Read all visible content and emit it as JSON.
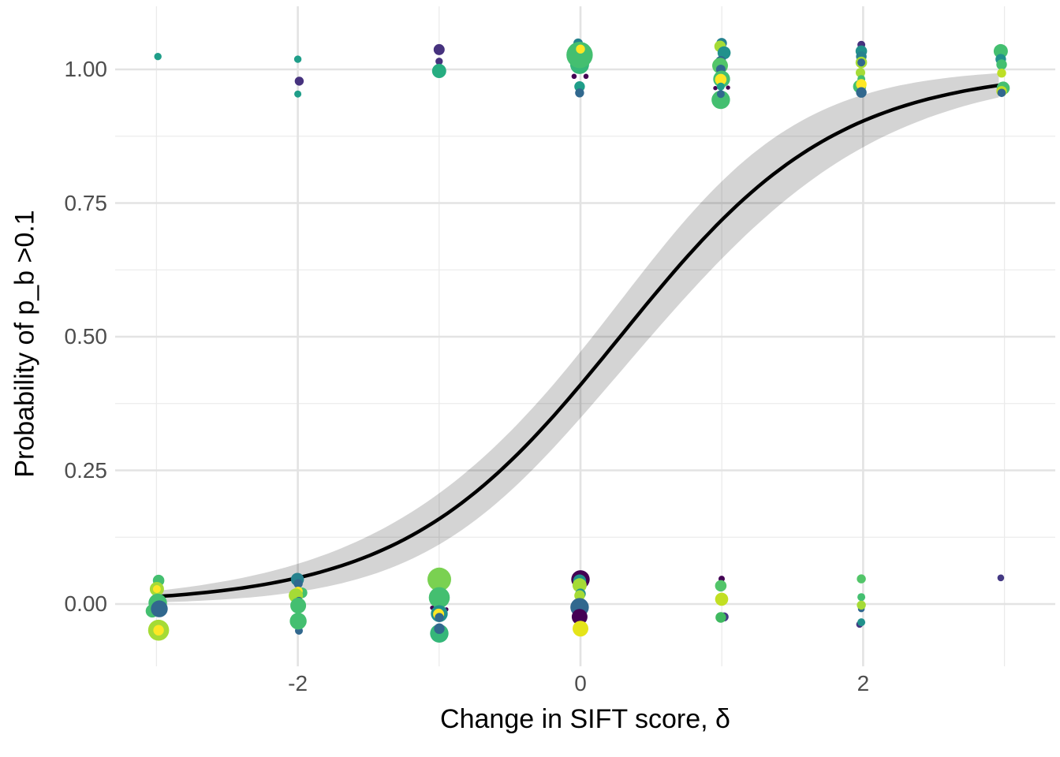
{
  "chart_data": {
    "type": "scatter",
    "title": "",
    "xlabel": "Change in SIFT score, δ",
    "ylabel": "Probability of p_b >0.1",
    "x_axis": {
      "tick_values": [
        -2,
        0,
        2
      ],
      "tick_labels": [
        "-2",
        "0",
        "2"
      ],
      "minor_gridlines": [
        -3,
        -1,
        1,
        3
      ],
      "lim": [
        -3.29,
        3.36
      ]
    },
    "y_axis": {
      "tick_values": [
        0,
        0.25,
        0.5,
        0.75,
        1.0
      ],
      "tick_labels": [
        "0.00",
        "0.25",
        "0.50",
        "0.75",
        "1.00"
      ],
      "minor_gridlines": [
        0.125,
        0.375,
        0.625,
        0.875
      ],
      "lim": [
        -0.117,
        1.118
      ]
    },
    "grid": {
      "on": true,
      "major_color": "#e3e3e3",
      "minor_color": "#ebebeb"
    },
    "legend": {
      "position": "none"
    },
    "fit_curve": {
      "model": "logistic",
      "intercept": -0.364,
      "slope": 1.3,
      "x_range": [
        -2.99,
        2.99
      ],
      "color": "#000000",
      "width": 4.5,
      "band_color": "rgba(0,0,0,0.17)",
      "band_se_intercept": 0.256,
      "band_se_slope": 0.25,
      "value_at_0": 0.41,
      "value_at_minus3": 0.013,
      "value_at_plus3": 0.97
    },
    "point_palette_name": "viridis",
    "points": [
      [
        -2.99,
        1.024,
        4.7,
        "#1f9e89"
      ],
      [
        -2.0,
        1.019,
        4.7,
        "#1f9e89"
      ],
      [
        -1.99,
        0.978,
        5.7,
        "#46327e"
      ],
      [
        -2.0,
        0.954,
        4.5,
        "#1f9e89"
      ],
      [
        -1.0,
        1.037,
        7.0,
        "#46327e"
      ],
      [
        -1.0,
        1.015,
        4.7,
        "#46327e"
      ],
      [
        -1.0,
        0.997,
        9.0,
        "#27ad81"
      ],
      [
        -0.017,
        1.049,
        6.0,
        "#26828e"
      ],
      [
        -0.006,
        1.009,
        12.0,
        "#35b779"
      ],
      [
        -0.006,
        1.027,
        16.7,
        "#44bf70"
      ],
      [
        0.0,
        1.038,
        5.7,
        "#fde725"
      ],
      [
        -0.045,
        0.987,
        3.3,
        "#440154"
      ],
      [
        0.039,
        0.987,
        3.3,
        "#440154"
      ],
      [
        -0.006,
        0.968,
        6.7,
        "#1f9e89"
      ],
      [
        -0.006,
        0.956,
        5.7,
        "#31688e"
      ],
      [
        0.999,
        1.049,
        6.7,
        "#26828e"
      ],
      [
        0.988,
        1.043,
        7.3,
        "#a5db36"
      ],
      [
        1.016,
        1.031,
        8.3,
        "#21918c"
      ],
      [
        0.993,
        1.015,
        6.7,
        "#31688e"
      ],
      [
        0.988,
        1.007,
        10.0,
        "#52c569"
      ],
      [
        0.993,
        1.0,
        6.0,
        "#31688e"
      ],
      [
        0.999,
        0.982,
        10.7,
        "#44bf70"
      ],
      [
        0.993,
        0.981,
        7.3,
        "#fde725"
      ],
      [
        0.993,
        0.943,
        11.7,
        "#44bf70"
      ],
      [
        0.954,
        0.965,
        2.7,
        "#440154"
      ],
      [
        1.044,
        0.966,
        2.7,
        "#440154"
      ],
      [
        0.993,
        0.968,
        5.0,
        "#1f9e89"
      ],
      [
        0.993,
        0.954,
        5.0,
        "#31688e"
      ],
      [
        1.987,
        1.046,
        5.0,
        "#46327e"
      ],
      [
        1.987,
        1.034,
        7.3,
        "#21918c"
      ],
      [
        1.987,
        1.024,
        6.7,
        "#26828e"
      ],
      [
        1.987,
        1.013,
        7.3,
        "#a5db36"
      ],
      [
        1.987,
        1.013,
        5.0,
        "#31688e"
      ],
      [
        1.981,
        0.994,
        6.0,
        "#a5db36"
      ],
      [
        1.975,
        0.968,
        8.3,
        "#44bf70"
      ],
      [
        1.987,
        0.982,
        5.0,
        "#44bf70"
      ],
      [
        1.987,
        0.972,
        6.7,
        "#fde725"
      ],
      [
        1.987,
        0.957,
        6.7,
        "#31688e"
      ],
      [
        2.974,
        1.034,
        9.0,
        "#44bf70"
      ],
      [
        2.974,
        1.019,
        6.7,
        "#21918c"
      ],
      [
        2.98,
        1.009,
        6.7,
        "#44bf70"
      ],
      [
        2.98,
        0.993,
        5.7,
        "#bddf26"
      ],
      [
        2.991,
        0.965,
        8.3,
        "#44bf70"
      ],
      [
        2.98,
        0.959,
        6.7,
        "#bddf26"
      ],
      [
        2.98,
        0.956,
        5.3,
        "#31688e"
      ],
      [
        -2.985,
        0.044,
        7.3,
        "#44bf70"
      ],
      [
        -2.997,
        0.028,
        9.0,
        "#a5db36"
      ],
      [
        -2.997,
        0.028,
        5.0,
        "#fde725"
      ],
      [
        -2.991,
        0.002,
        11.7,
        "#44bf70"
      ],
      [
        -3.03,
        -0.013,
        8.3,
        "#44bf70"
      ],
      [
        -2.98,
        -0.009,
        10.7,
        "#31688e"
      ],
      [
        -2.985,
        -0.049,
        13.3,
        "#a5db36"
      ],
      [
        -2.985,
        -0.049,
        6.7,
        "#fde725"
      ],
      [
        -2.003,
        0.046,
        8.3,
        "#26828e"
      ],
      [
        -1.997,
        0.038,
        5.7,
        "#31688e"
      ],
      [
        -1.97,
        0.021,
        6.7,
        "#44bf70"
      ],
      [
        -1.997,
        0.024,
        5.7,
        "#fde725"
      ],
      [
        -2.014,
        0.016,
        9.0,
        "#a5db36"
      ],
      [
        -1.992,
        0.006,
        5.0,
        "#31688e"
      ],
      [
        -1.997,
        -0.003,
        10.0,
        "#44bf70"
      ],
      [
        -1.992,
        -0.05,
        5.0,
        "#31688e"
      ],
      [
        -1.997,
        -0.032,
        10.7,
        "#44bf70"
      ],
      [
        -0.999,
        0.046,
        15.0,
        "#7ad151"
      ],
      [
        -1.004,
        0.006,
        7.3,
        "#fde725"
      ],
      [
        -0.999,
        0.012,
        13.3,
        "#44bf70"
      ],
      [
        -1.049,
        -0.007,
        2.7,
        "#440154"
      ],
      [
        -0.949,
        -0.01,
        2.7,
        "#440154"
      ],
      [
        -0.999,
        -0.018,
        10.7,
        "#21918c"
      ],
      [
        -1.004,
        -0.019,
        7.0,
        "#fde725"
      ],
      [
        -0.999,
        -0.025,
        5.7,
        "#31688e"
      ],
      [
        -0.999,
        -0.055,
        11.7,
        "#35b779"
      ],
      [
        -0.999,
        -0.046,
        6.7,
        "#31688e"
      ],
      [
        0.0,
        0.046,
        11.7,
        "#440154"
      ],
      [
        -0.006,
        0.043,
        8.3,
        "#21918c"
      ],
      [
        -0.006,
        0.035,
        9.0,
        "#a5db36"
      ],
      [
        0.0,
        0.019,
        6.7,
        "#21918c"
      ],
      [
        -0.006,
        0.016,
        6.7,
        "#a5db36"
      ],
      [
        -0.006,
        -0.006,
        11.7,
        "#31688e"
      ],
      [
        -0.006,
        -0.021,
        6.0,
        "#1f9e89"
      ],
      [
        -0.006,
        -0.024,
        10.0,
        "#440154"
      ],
      [
        0.0,
        -0.046,
        10.0,
        "#e5e419"
      ],
      [
        0.999,
        0.047,
        4.0,
        "#440154"
      ],
      [
        0.993,
        0.034,
        7.3,
        "#52c569"
      ],
      [
        0.999,
        0.009,
        8.3,
        "#c2df23"
      ],
      [
        1.016,
        -0.024,
        5.7,
        "#443983"
      ],
      [
        0.993,
        -0.025,
        6.7,
        "#3fb960"
      ],
      [
        1.987,
        0.047,
        5.7,
        "#52c569"
      ],
      [
        1.987,
        0.013,
        5.0,
        "#44bf70"
      ],
      [
        1.987,
        -0.009,
        4.3,
        "#31688e"
      ],
      [
        1.987,
        -0.002,
        5.7,
        "#a5db36"
      ],
      [
        1.975,
        -0.038,
        4.3,
        "#443983"
      ],
      [
        1.987,
        -0.034,
        5.0,
        "#21918c"
      ],
      [
        2.974,
        0.049,
        4.3,
        "#443983"
      ]
    ]
  }
}
